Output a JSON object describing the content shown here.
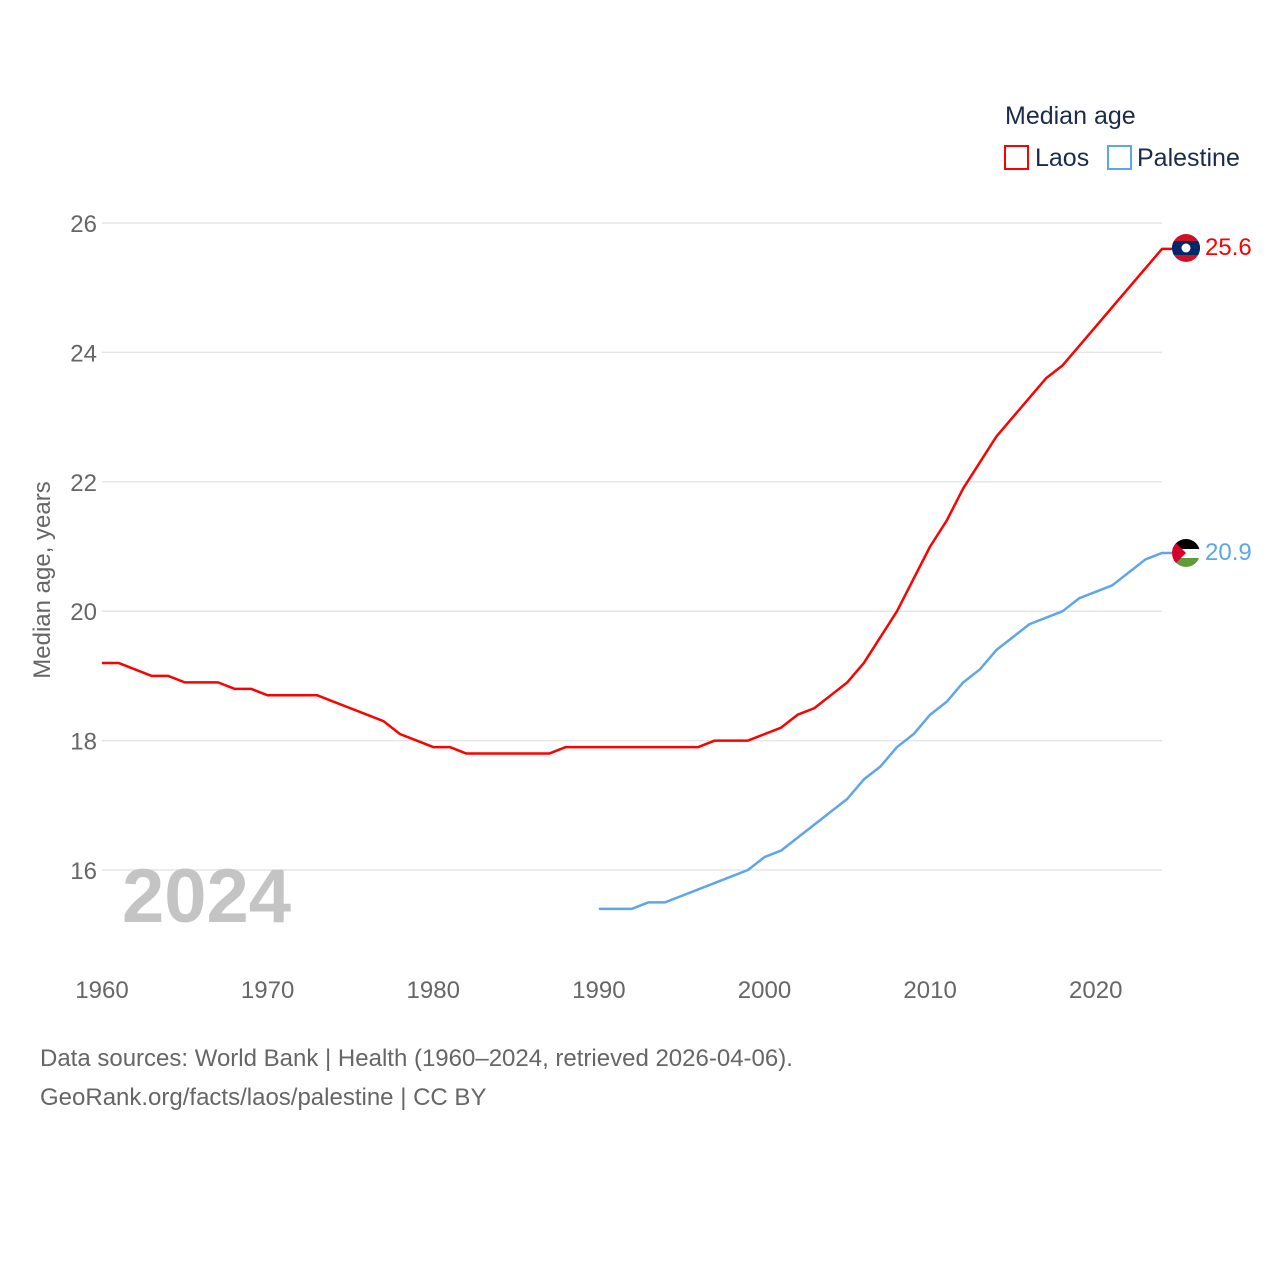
{
  "chart_data": {
    "type": "line",
    "title": "",
    "xlabel": "",
    "ylabel": "Median age, years",
    "xlim": [
      1960,
      2024
    ],
    "ylim": [
      15,
      26
    ],
    "xticks": [
      1960,
      1970,
      1980,
      1990,
      2000,
      2010,
      2020
    ],
    "yticks": [
      16,
      18,
      20,
      22,
      24,
      26
    ],
    "grid": true,
    "legend": {
      "title": "Median age",
      "placement": "top-right"
    },
    "year_label": "2024",
    "series": [
      {
        "name": "Laos",
        "color": "#ff0000",
        "end_label": "25.6",
        "start_year": 1960,
        "values": [
          19.2,
          19.2,
          19.1,
          19.0,
          19.0,
          18.9,
          18.9,
          18.9,
          18.8,
          18.8,
          18.7,
          18.7,
          18.7,
          18.7,
          18.6,
          18.5,
          18.4,
          18.3,
          18.1,
          18.0,
          17.9,
          17.9,
          17.8,
          17.8,
          17.8,
          17.8,
          17.8,
          17.8,
          17.9,
          17.9,
          17.9,
          17.9,
          17.9,
          17.9,
          17.9,
          17.9,
          17.9,
          18.0,
          18.0,
          18.0,
          18.1,
          18.2,
          18.4,
          18.5,
          18.7,
          18.9,
          19.2,
          19.6,
          20.0,
          20.5,
          21.0,
          21.4,
          21.9,
          22.3,
          22.7,
          23.0,
          23.3,
          23.6,
          23.8,
          24.1,
          24.4,
          24.7,
          25.0,
          25.3,
          25.6
        ]
      },
      {
        "name": "Palestine",
        "color": "#5ea6ea",
        "end_label": "20.9",
        "start_year": 1990,
        "values": [
          15.4,
          15.4,
          15.4,
          15.5,
          15.5,
          15.6,
          15.7,
          15.8,
          15.9,
          16.0,
          16.2,
          16.3,
          16.5,
          16.7,
          16.9,
          17.1,
          17.4,
          17.6,
          17.9,
          18.1,
          18.4,
          18.6,
          18.9,
          19.1,
          19.4,
          19.6,
          19.8,
          19.9,
          20.0,
          20.2,
          20.3,
          20.4,
          20.6,
          20.8,
          20.9
        ]
      }
    ]
  },
  "footer": {
    "line1": "Data sources: World Bank | Health (1960–2024, retrieved 2026-04-06).",
    "line2": "GeoRank.org/facts/laos/palestine | CC BY"
  }
}
